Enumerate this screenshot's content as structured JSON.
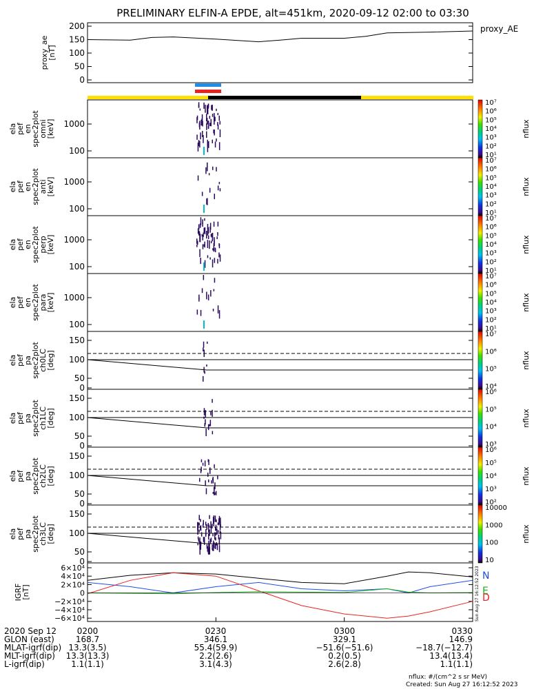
{
  "title": "PRELIMINARY ELFIN-A EPDE, alt=451km, 2020-09-12 02:00 to 03:30",
  "colors": {
    "blue": "#1e8ce8",
    "red": "#e8231e",
    "yellow": "#ffe000",
    "black": "#000000",
    "green": "#19b319",
    "spec_dark": "#2b0a5e"
  },
  "panels": {
    "proxy_ae": {
      "ylabel": [
        "proxy_ae",
        "[nT]"
      ],
      "yticks": [
        "200",
        "150",
        "100",
        "50",
        "0"
      ],
      "legend": "proxy_AE"
    },
    "spec_omni": {
      "ylabel": [
        "ela",
        "pef",
        "en",
        "spec2plot",
        "omni",
        "[keV]"
      ],
      "yticks": [
        "1000",
        "100"
      ]
    },
    "spec_anti": {
      "ylabel": [
        "ela",
        "pef",
        "en",
        "spec2plot",
        "anti",
        "[keV]"
      ],
      "yticks": [
        "1000",
        "100"
      ]
    },
    "spec_perp": {
      "ylabel": [
        "ela",
        "pef",
        "en",
        "spec2plot",
        "perp",
        "[keV]"
      ],
      "yticks": [
        "1000",
        "100"
      ]
    },
    "spec_para": {
      "ylabel": [
        "ela",
        "pef",
        "en",
        "spec2plot",
        "para",
        "[keV]"
      ],
      "yticks": [
        "1000",
        "100"
      ]
    },
    "pa_ch0": {
      "ylabel": [
        "ela",
        "pef",
        "pa",
        "spec2plot",
        "ch0LC",
        "[deg]"
      ],
      "yticks": [
        "150",
        "100",
        "50",
        "0"
      ]
    },
    "pa_ch1": {
      "ylabel": [
        "ela",
        "pef",
        "pa",
        "spec2plot",
        "ch1LC",
        "[deg]"
      ],
      "yticks": [
        "150",
        "100",
        "50",
        "0"
      ]
    },
    "pa_ch2": {
      "ylabel": [
        "ela",
        "pef",
        "pa",
        "spec2plot",
        "ch2LC",
        "[deg]"
      ],
      "yticks": [
        "150",
        "100",
        "50",
        "0"
      ]
    },
    "pa_ch3": {
      "ylabel": [
        "ela",
        "pef",
        "pa",
        "spec2plot",
        "ch3LC",
        "[deg]"
      ],
      "yticks": [
        "150",
        "100",
        "50",
        "0"
      ]
    },
    "igrf": {
      "ylabel": [
        "IGRF",
        "[nT]"
      ],
      "yticks": [
        "6×10⁴",
        "4×10⁴",
        "2×10⁴",
        "0",
        "−2×10⁴",
        "−4×10⁴",
        "−6×10⁴"
      ],
      "legend": [
        "N",
        "E",
        "D"
      ]
    }
  },
  "colorbars": {
    "spec_labels": [
      "10⁷",
      "10⁶",
      "10⁵",
      "10⁴",
      "10³",
      "10²",
      "10¹"
    ],
    "pa0_labels": [
      "10⁷",
      "10⁶",
      "10⁵",
      "10⁴"
    ],
    "pa1_labels": [
      "10⁶",
      "10⁵",
      "10⁴",
      "10³"
    ],
    "pa2_labels": [
      "10⁶",
      "10⁵",
      "10⁴",
      "10³",
      "10²"
    ],
    "pa3_labels": [
      "10000",
      "1000",
      "100",
      "10"
    ],
    "unit": "nflux"
  },
  "xaxis": {
    "row_labels": [
      "2020 Sep 12",
      "GLON (east)",
      "MLAT-igrf(dip)",
      "MLT-igrf(dip)",
      "L-igrf(dip)"
    ],
    "columns": [
      [
        "0200",
        "168.7",
        "13.3(3.5)",
        "13.3(13.3)",
        "1.1(1.1)"
      ],
      [
        "0230",
        "346.1",
        "55.4(59.9)",
        "2.2(2.6)",
        "3.1(4.3)"
      ],
      [
        "0300",
        "329.1",
        "−51.6(−51.6)",
        "0.2(0.5)",
        "2.6(2.8)"
      ],
      [
        "0330",
        "146.9",
        "−18.7(−12.7)",
        "13.4(13.4)",
        "1.1(1.1)"
      ]
    ]
  },
  "footer": {
    "nflux_units": "nflux: #/(cm^2 s sr MeV)",
    "created": "Created: Sun Aug 27 16:12:52 2023",
    "side_stamp": "Sun Aug 27 16:12:52 2023"
  },
  "chart_data": {
    "type": "line",
    "x_range_minutes": [
      "02:00",
      "03:30"
    ],
    "proxy_ae": {
      "x": [
        "02:00",
        "02:10",
        "02:15",
        "02:20",
        "02:30",
        "02:40",
        "02:45",
        "02:50",
        "03:00",
        "03:05",
        "03:10",
        "03:20",
        "03:30"
      ],
      "y": [
        150,
        148,
        158,
        160,
        152,
        142,
        148,
        155,
        155,
        162,
        175,
        178,
        182
      ],
      "ylim": [
        0,
        200
      ]
    },
    "orbit_bars": {
      "blue_marker": [
        "02:25",
        "02:28"
      ],
      "red_marker": [
        "02:25",
        "02:28"
      ],
      "black_segment": [
        "02:28",
        "03:02"
      ]
    },
    "igrf": {
      "ylim": [
        -60000,
        60000
      ],
      "series": [
        {
          "name": "N",
          "x": [
            "02:00",
            "02:10",
            "02:20",
            "02:30",
            "02:40",
            "02:50",
            "03:00",
            "03:10",
            "03:15",
            "03:20",
            "03:30"
          ],
          "y": [
            30000,
            42000,
            48000,
            45000,
            35000,
            25000,
            22000,
            40000,
            50000,
            48000,
            38000
          ]
        },
        {
          "name": "E",
          "x": [
            "02:00",
            "02:10",
            "02:20",
            "02:30",
            "02:40",
            "02:50",
            "03:00",
            "03:10",
            "03:15",
            "03:20",
            "03:30"
          ],
          "y": [
            25000,
            15000,
            0,
            15000,
            25000,
            10000,
            5000,
            10000,
            0,
            15000,
            30000
          ]
        },
        {
          "name": "D",
          "x": [
            "02:00",
            "02:10",
            "02:20",
            "02:30",
            "02:40",
            "02:50",
            "03:00",
            "03:10",
            "03:15",
            "03:20",
            "03:30"
          ],
          "y": [
            -2000,
            30000,
            48000,
            40000,
            5000,
            -30000,
            -50000,
            -60000,
            -55000,
            -45000,
            -20000
          ]
        },
        {
          "name": "green",
          "x": [
            "02:00",
            "02:10",
            "02:20",
            "02:30",
            "02:40",
            "02:50",
            "03:00",
            "03:10",
            "03:15",
            "03:20",
            "03:30"
          ],
          "y": [
            0,
            -1000,
            -2000,
            1000,
            3000,
            2000,
            1000,
            10000,
            2000,
            0,
            1000
          ]
        }
      ]
    },
    "loss_cone_deg": {
      "dashed": 113,
      "solid_start": 92,
      "solid_end_top": 92,
      "solid_end_bottom": 70
    }
  }
}
